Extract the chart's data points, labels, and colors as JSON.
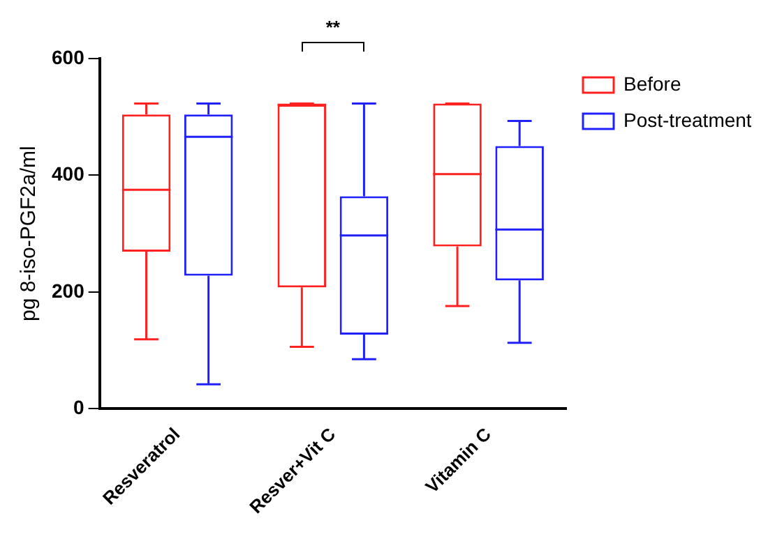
{
  "chart_data": {
    "type": "box",
    "ylabel": "pg 8-iso-PGF2a/ml",
    "categories": [
      "Resveratrol",
      "Resver+Vit C",
      "Vitamin C"
    ],
    "series": [
      {
        "name": "Before",
        "color": "#ff2020",
        "boxes": [
          {
            "low": 119,
            "q1": 269,
            "median": 375,
            "q3": 504,
            "high": 523
          },
          {
            "low": 106,
            "q1": 208,
            "median": 521,
            "q3": 521,
            "high": 523
          },
          {
            "low": 176,
            "q1": 278,
            "median": 402,
            "q3": 523,
            "high": 523
          }
        ]
      },
      {
        "name": "Post-treatment",
        "color": "#2020ff",
        "boxes": [
          {
            "low": 42,
            "q1": 228,
            "median": 466,
            "q3": 504,
            "high": 523
          },
          {
            "low": 85,
            "q1": 127,
            "median": 297,
            "q3": 364,
            "high": 523
          },
          {
            "low": 113,
            "q1": 220,
            "median": 307,
            "q3": 450,
            "high": 493
          }
        ]
      }
    ],
    "ylim": [
      0,
      600
    ],
    "yticks": [
      0,
      200,
      400,
      600
    ],
    "grid": false,
    "legend": "top right",
    "annotations": [
      "**"
    ]
  }
}
